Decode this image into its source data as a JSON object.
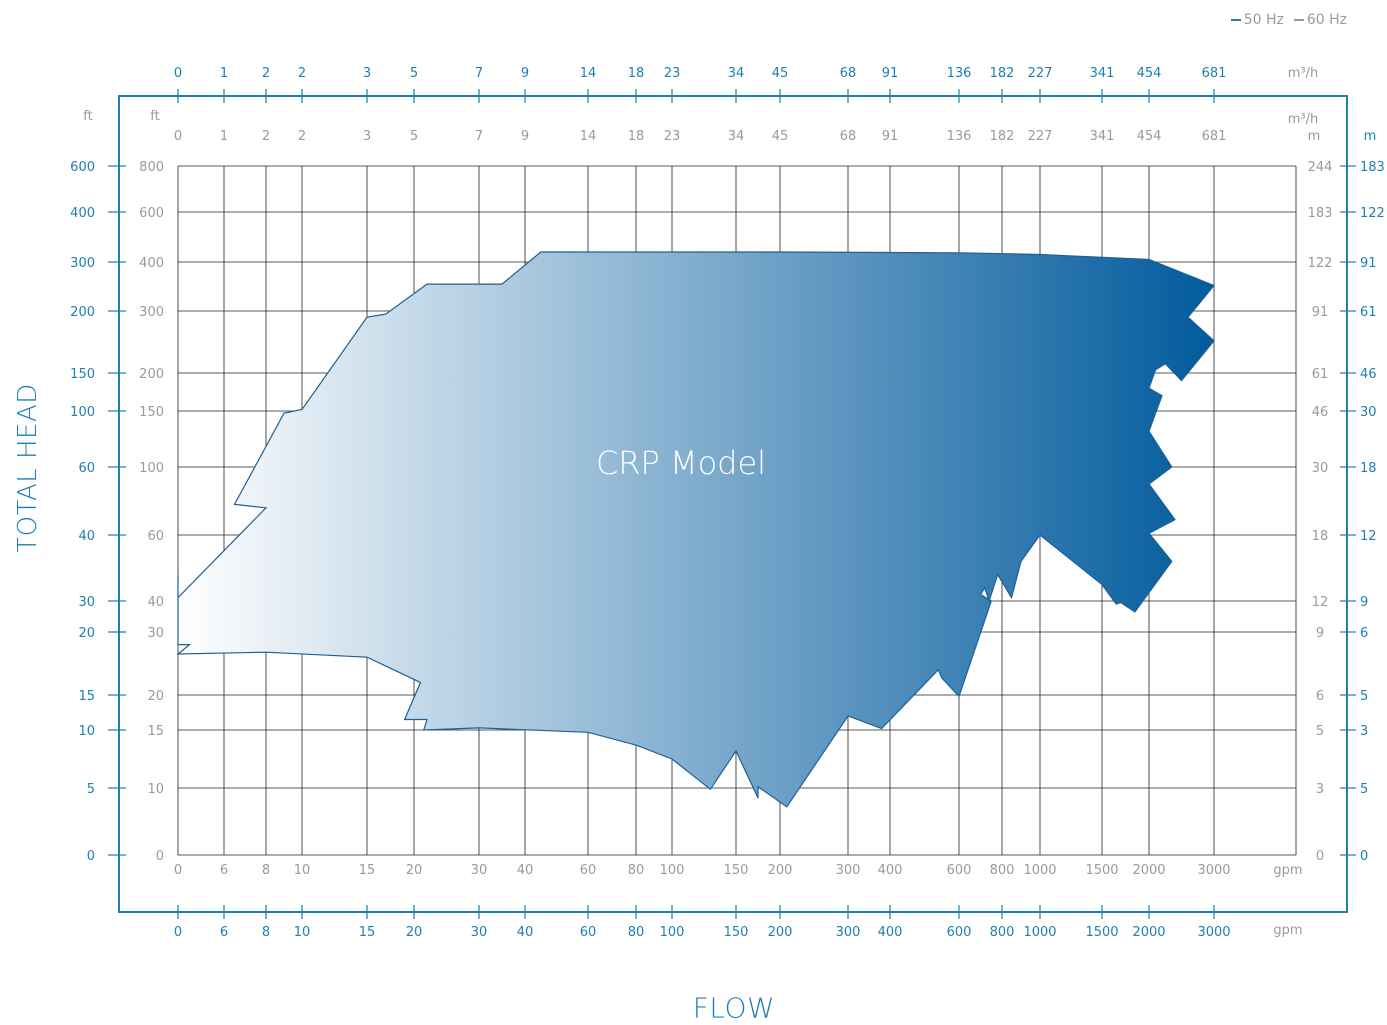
{
  "chart_data": {
    "type": "area",
    "title": "",
    "region_label": "CRP Model",
    "xlabel": "FLOW",
    "ylabel": "TOTAL HEAD",
    "legend": {
      "placement": "top-right",
      "entries": [
        {
          "label": "50 Hz",
          "color": "#1f7fb4"
        },
        {
          "label": "60 Hz",
          "color": "#9a9a9a"
        }
      ]
    },
    "colors": {
      "frame": "#1f7fb4",
      "accent": "#1f7fb4",
      "grey": "#9a9a9a",
      "grid": "#222222",
      "gradient_start": "#ffffff",
      "gradient_end": "#005a9c"
    },
    "x_axis": {
      "unit_m3h": "m³/h",
      "unit_gpm": "gpm",
      "gpm_ticks": [
        0,
        6,
        8,
        10,
        15,
        20,
        30,
        40,
        60,
        80,
        100,
        150,
        200,
        300,
        400,
        600,
        800,
        1000,
        1500,
        2000,
        3000
      ],
      "m3h_ticks": [
        "0",
        "1",
        "2",
        "2",
        "3",
        "5",
        "7",
        "9",
        "14",
        "18",
        "23",
        "34",
        "45",
        "68",
        "91",
        "136",
        "182",
        "227",
        "341",
        "454",
        "681"
      ]
    },
    "y_axis": {
      "unit_ft": "ft",
      "unit_m": "m",
      "ft_60hz_ticks": [
        0,
        10,
        15,
        20,
        30,
        40,
        60,
        100,
        150,
        200,
        300,
        400,
        600,
        800
      ],
      "ft_50hz_ticks": [
        0,
        5,
        10,
        15,
        20,
        30,
        40,
        60,
        100,
        150,
        200,
        300,
        400,
        600
      ],
      "m_60hz_ticks": [
        0,
        3,
        5,
        6,
        9,
        12,
        18,
        30,
        46,
        61,
        91,
        122,
        183,
        244
      ],
      "m_50hz_ticks": [
        0,
        5,
        3,
        5,
        6,
        9,
        12,
        18,
        30,
        46,
        61,
        91,
        122,
        183
      ]
    },
    "envelope_outline": [
      [
        0,
        48
      ],
      [
        0,
        28
      ],
      [
        1.5,
        28
      ],
      [
        0,
        26.5
      ],
      [
        8,
        26.8
      ],
      [
        15,
        26
      ],
      [
        21,
        22
      ],
      [
        19,
        16.5
      ],
      [
        22,
        16.5
      ],
      [
        21.5,
        15
      ],
      [
        30,
        15.3
      ],
      [
        60,
        14.8
      ],
      [
        80,
        13.7
      ],
      [
        100,
        12.5
      ],
      [
        130,
        9.8
      ],
      [
        150,
        13.2
      ],
      [
        175,
        8.5
      ],
      [
        175,
        10.1
      ],
      [
        210,
        7.2
      ],
      [
        300,
        17
      ],
      [
        380,
        15.2
      ],
      [
        540,
        24
      ],
      [
        550,
        22.7
      ],
      [
        600,
        19.8
      ],
      [
        750,
        40
      ],
      [
        700,
        42
      ],
      [
        720,
        44
      ],
      [
        740,
        40
      ],
      [
        780,
        48
      ],
      [
        850,
        41
      ],
      [
        900,
        52
      ],
      [
        1000,
        60
      ],
      [
        1500,
        45
      ],
      [
        1650,
        39
      ],
      [
        1700,
        39.5
      ],
      [
        1850,
        36.5
      ],
      [
        2350,
        52
      ],
      [
        2000,
        61
      ],
      [
        2400,
        69
      ],
      [
        2000,
        90
      ],
      [
        2350,
        100
      ],
      [
        2000,
        132
      ],
      [
        2200,
        170
      ],
      [
        2000,
        180
      ],
      [
        2100,
        205
      ],
      [
        2250,
        215
      ],
      [
        2500,
        190
      ],
      [
        3000,
        252
      ],
      [
        2600,
        290
      ],
      [
        3000,
        352
      ],
      [
        2000,
        410
      ],
      [
        1000,
        430
      ],
      [
        600,
        437
      ],
      [
        200,
        440
      ],
      [
        45,
        440
      ],
      [
        35,
        355
      ],
      [
        22,
        355
      ],
      [
        17,
        295
      ],
      [
        15,
        290
      ],
      [
        10,
        152
      ],
      [
        9,
        148
      ],
      [
        6.5,
        78
      ],
      [
        8,
        76
      ],
      [
        0,
        41
      ],
      [
        0,
        48
      ]
    ]
  }
}
